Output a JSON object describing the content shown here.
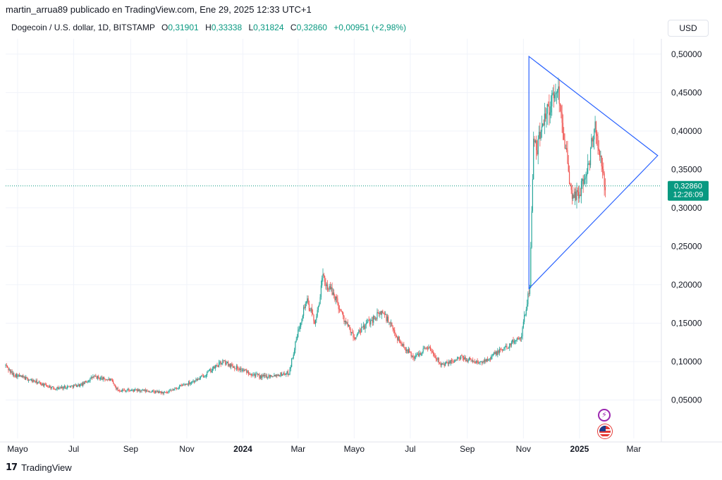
{
  "header": {
    "published": "martin_arrua89 publicado en TradingView.com, Ene 29, 2025 12:33 UTC+1",
    "symbol": "Dogecoin / U.S. dollar, 1D, BITSTAMP",
    "open_label": "O",
    "open": "0,31901",
    "high_label": "H",
    "high": "0,33338",
    "low_label": "L",
    "low": "0,31824",
    "close_label": "C",
    "close": "0,32860",
    "change": "+0,00951 (+2,98%)"
  },
  "currency_button": "USD",
  "footer": {
    "brand": "TradingView",
    "logo_glyph": "17"
  },
  "price_label": {
    "price": "0,32860",
    "countdown": "12:26:09"
  },
  "colors": {
    "up": "#089981",
    "down": "#f23645",
    "up_bar": "#26a69a",
    "down_bar": "#ef5350",
    "triangle": "#2962ff",
    "price_line": "#089981",
    "grid": "#f0f3fa"
  },
  "chart_data": {
    "type": "candlestick",
    "title": "Dogecoin / U.S. dollar, 1D, BITSTAMP",
    "x_range": [
      "2023-04-18",
      "2025-03-31"
    ],
    "ylim": [
      0.0,
      0.52
    ],
    "y_ticks": [
      "0,50000",
      "0,45000",
      "0,40000",
      "0,35000",
      "0,30000",
      "0,25000",
      "0,20000",
      "0,15000",
      "0,10000",
      "0,05000"
    ],
    "y_tick_values": [
      0.5,
      0.45,
      0.4,
      0.35,
      0.3,
      0.25,
      0.2,
      0.15,
      0.1,
      0.05
    ],
    "x_ticks": [
      "Mayo",
      "Jul",
      "Sep",
      "Nov",
      "2024",
      "Mar",
      "Mayo",
      "Jul",
      "Sep",
      "Nov",
      "2025",
      "Mar"
    ],
    "x_tick_dates": [
      "2023-05-01",
      "2023-07-01",
      "2023-09-01",
      "2023-11-01",
      "2024-01-01",
      "2024-03-01",
      "2024-05-01",
      "2024-07-01",
      "2024-09-01",
      "2024-11-01",
      "2025-01-01",
      "2025-03-01"
    ],
    "x_tick_bold": [
      false,
      false,
      false,
      false,
      true,
      false,
      false,
      false,
      false,
      false,
      true,
      false
    ],
    "last_price": 0.3286,
    "price_path": [
      [
        "2023-04-18",
        0.095
      ],
      [
        "2023-04-25",
        0.084
      ],
      [
        "2023-05-10",
        0.078
      ],
      [
        "2023-06-10",
        0.065
      ],
      [
        "2023-07-10",
        0.07
      ],
      [
        "2023-07-22",
        0.08
      ],
      [
        "2023-08-10",
        0.076
      ],
      [
        "2023-08-18",
        0.063
      ],
      [
        "2023-09-15",
        0.062
      ],
      [
        "2023-10-10",
        0.059
      ],
      [
        "2023-10-25",
        0.068
      ],
      [
        "2023-11-15",
        0.078
      ],
      [
        "2023-12-10",
        0.1
      ],
      [
        "2023-12-25",
        0.092
      ],
      [
        "2024-01-20",
        0.08
      ],
      [
        "2024-02-20",
        0.085
      ],
      [
        "2024-03-05",
        0.16
      ],
      [
        "2024-03-10",
        0.18
      ],
      [
        "2024-03-20",
        0.15
      ],
      [
        "2024-03-28",
        0.21
      ],
      [
        "2024-04-01",
        0.2
      ],
      [
        "2024-04-10",
        0.185
      ],
      [
        "2024-04-20",
        0.155
      ],
      [
        "2024-05-01",
        0.13
      ],
      [
        "2024-05-15",
        0.15
      ],
      [
        "2024-06-01",
        0.165
      ],
      [
        "2024-06-20",
        0.125
      ],
      [
        "2024-07-05",
        0.105
      ],
      [
        "2024-07-20",
        0.12
      ],
      [
        "2024-08-05",
        0.095
      ],
      [
        "2024-08-25",
        0.105
      ],
      [
        "2024-09-15",
        0.098
      ],
      [
        "2024-10-01",
        0.11
      ],
      [
        "2024-10-15",
        0.12
      ],
      [
        "2024-10-30",
        0.135
      ],
      [
        "2024-11-08",
        0.2
      ],
      [
        "2024-11-12",
        0.39
      ],
      [
        "2024-11-15",
        0.37
      ],
      [
        "2024-11-23",
        0.42
      ],
      [
        "2024-12-03",
        0.44
      ],
      [
        "2024-12-08",
        0.46
      ],
      [
        "2024-12-15",
        0.4
      ],
      [
        "2024-12-22",
        0.32
      ],
      [
        "2024-12-30",
        0.315
      ],
      [
        "2025-01-10",
        0.35
      ],
      [
        "2025-01-18",
        0.41
      ],
      [
        "2025-01-22",
        0.37
      ],
      [
        "2025-01-29",
        0.3286
      ]
    ],
    "annotations": {
      "triangle": [
        [
          "2024-11-07",
          0.497
        ],
        [
          "2025-03-27",
          0.368
        ],
        [
          "2024-11-07",
          0.195
        ]
      ]
    }
  }
}
